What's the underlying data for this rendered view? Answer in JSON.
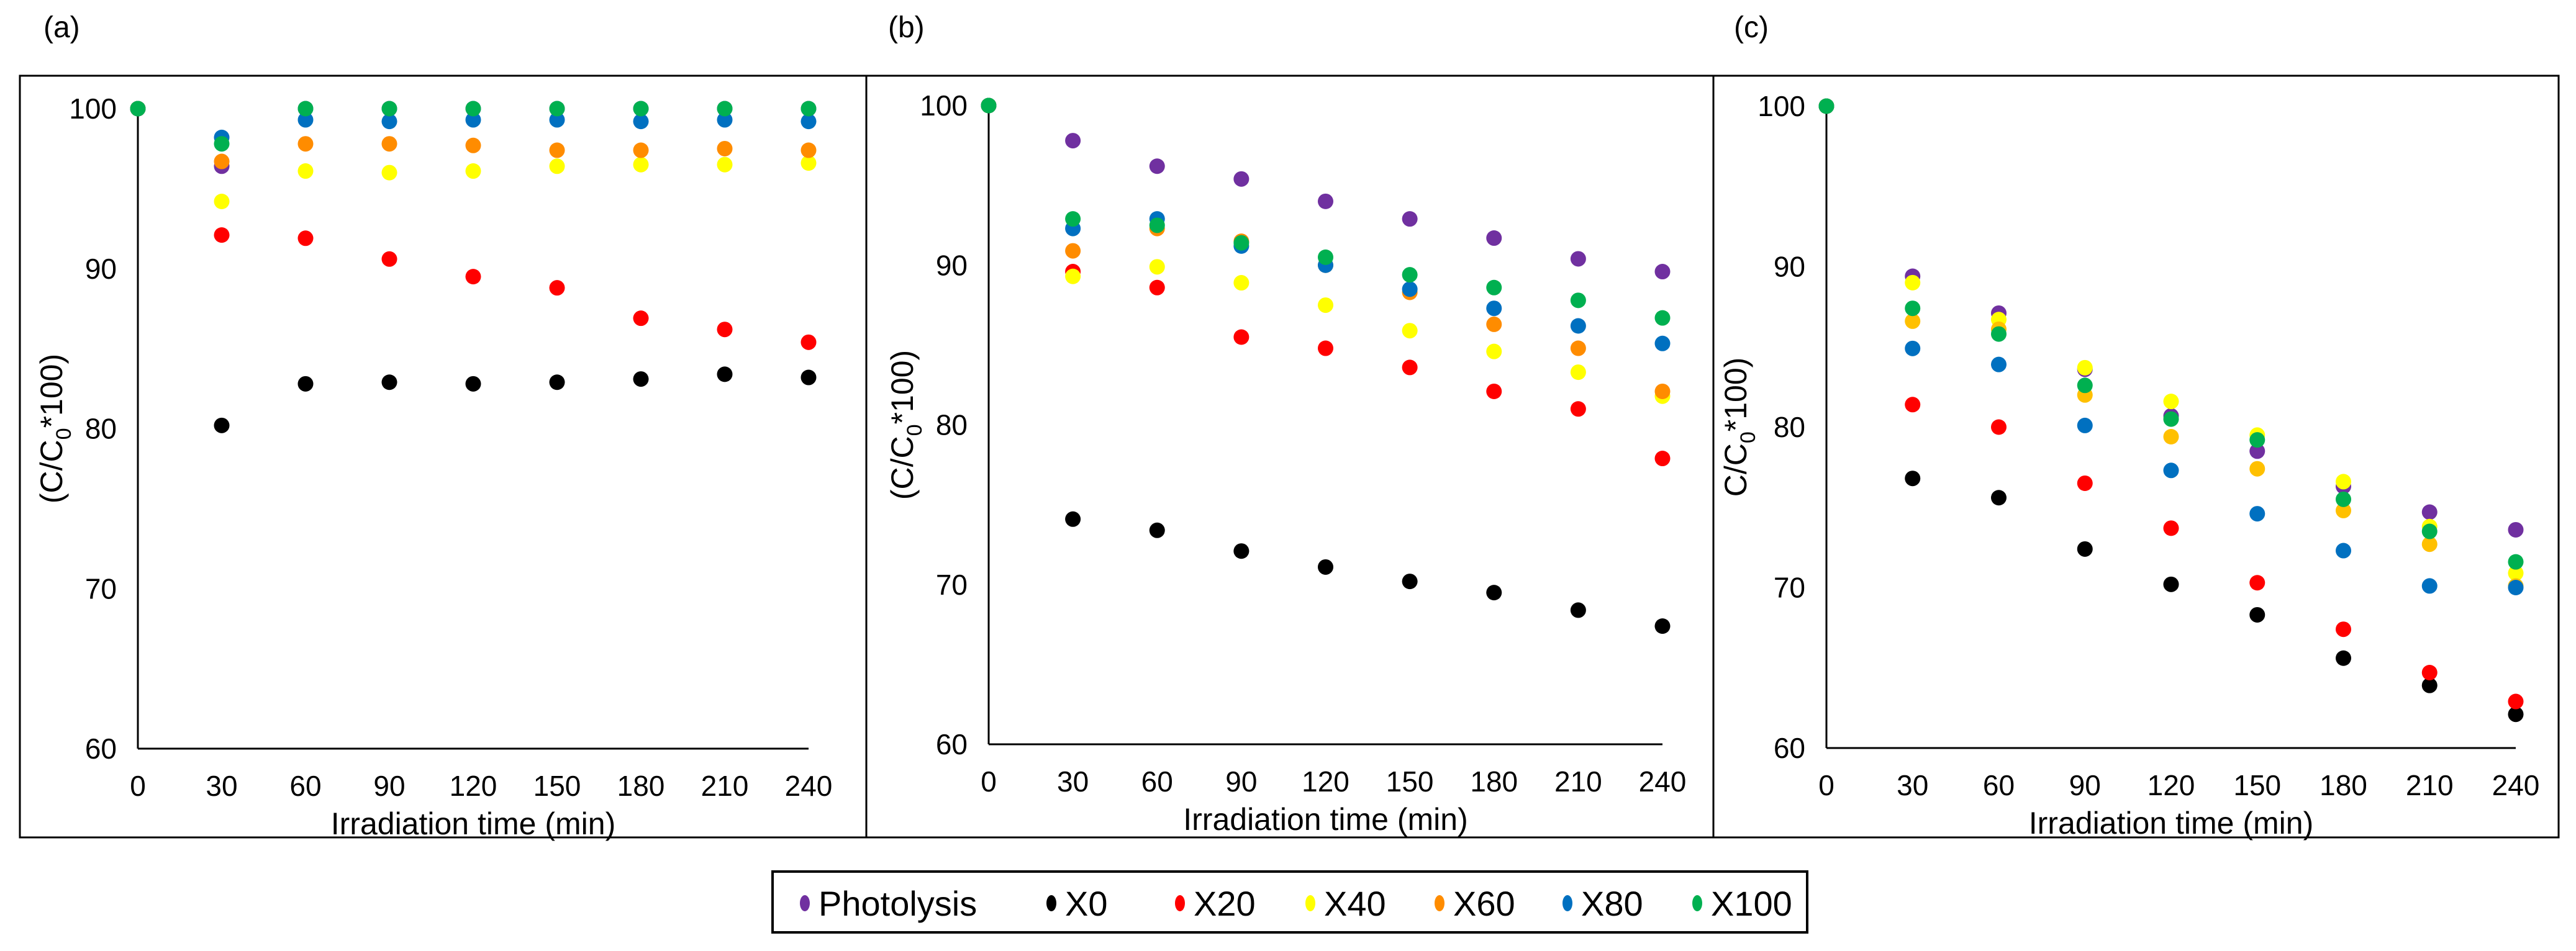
{
  "legend": {
    "items": [
      {
        "label": "Photolysis",
        "color": "#7030A0"
      },
      {
        "label": "X0",
        "color": "#000000"
      },
      {
        "label": "X20",
        "color": "#FF0000"
      },
      {
        "label": "X40",
        "color": "#FFFF00"
      },
      {
        "label": "X60",
        "color": "#FF8C00"
      },
      {
        "label": "X80",
        "color": "#0070C0"
      },
      {
        "label": "X100",
        "color": "#00B050"
      }
    ]
  },
  "chart_data": [
    {
      "type": "scatter",
      "panel_label": "(a)",
      "xlabel": "Irradiation time (min)",
      "ylabel": "(C/C0*100)",
      "ylabel_parts": [
        "(C/C",
        "0",
        "*100)"
      ],
      "xlim": [
        0,
        240
      ],
      "ylim": [
        60,
        100
      ],
      "xticks": [
        0,
        30,
        60,
        90,
        120,
        150,
        180,
        210,
        240
      ],
      "yticks": [
        60,
        70,
        80,
        90,
        100
      ],
      "grid": false,
      "x": [
        0,
        30,
        60,
        90,
        120,
        150,
        180,
        210,
        240
      ],
      "series": [
        {
          "name": "Photolysis",
          "color": "#7030A0",
          "values": [
            100,
            96.4,
            100,
            100,
            100,
            100,
            100,
            100,
            100
          ]
        },
        {
          "name": "X0",
          "color": "#000000",
          "values": [
            100,
            80.2,
            82.8,
            82.9,
            82.8,
            82.9,
            83.1,
            83.4,
            83.2
          ]
        },
        {
          "name": "X20",
          "color": "#FF0000",
          "values": [
            100,
            92.1,
            91.9,
            90.6,
            89.5,
            88.8,
            86.9,
            86.2,
            85.4
          ]
        },
        {
          "name": "X40",
          "color": "#FFFF00",
          "values": [
            100,
            94.2,
            96.1,
            96.0,
            96.1,
            96.4,
            96.5,
            96.5,
            96.6
          ]
        },
        {
          "name": "X60",
          "color": "#FF8C00",
          "values": [
            100,
            96.7,
            97.8,
            97.8,
            97.7,
            97.4,
            97.4,
            97.5,
            97.4
          ]
        },
        {
          "name": "X80",
          "color": "#0070C0",
          "values": [
            100,
            98.2,
            99.3,
            99.2,
            99.3,
            99.3,
            99.2,
            99.3,
            99.2
          ]
        },
        {
          "name": "X100",
          "color": "#00B050",
          "values": [
            100,
            97.8,
            100,
            100,
            100,
            100,
            100,
            100,
            100
          ]
        }
      ]
    },
    {
      "type": "scatter",
      "panel_label": "(b)",
      "xlabel": "Irradiation time (min)",
      "ylabel": "(C/C0*100)",
      "ylabel_parts": [
        "(C/C",
        "0",
        "*100)"
      ],
      "xlim": [
        0,
        240
      ],
      "ylim": [
        60,
        100
      ],
      "xticks": [
        0,
        30,
        60,
        90,
        120,
        150,
        180,
        210,
        240
      ],
      "yticks": [
        60,
        70,
        80,
        90,
        100
      ],
      "grid": false,
      "x": [
        0,
        30,
        60,
        90,
        120,
        150,
        180,
        210,
        240
      ],
      "series": [
        {
          "name": "Photolysis",
          "color": "#7030A0",
          "values": [
            100,
            97.8,
            96.2,
            95.4,
            94.0,
            92.9,
            91.7,
            90.4,
            89.6
          ]
        },
        {
          "name": "X0",
          "color": "#000000",
          "values": [
            100,
            74.1,
            73.4,
            72.1,
            71.1,
            70.2,
            69.5,
            68.4,
            67.4
          ]
        },
        {
          "name": "X20",
          "color": "#FF0000",
          "values": [
            100,
            89.6,
            88.6,
            85.5,
            84.8,
            83.6,
            82.1,
            81.0,
            77.9
          ]
        },
        {
          "name": "X40",
          "color": "#FFFF00",
          "values": [
            100,
            89.3,
            89.9,
            88.9,
            87.5,
            85.9,
            84.6,
            83.3,
            81.8
          ]
        },
        {
          "name": "X60",
          "color": "#FF8C00",
          "values": [
            100,
            90.9,
            92.3,
            91.5,
            90.0,
            88.3,
            86.3,
            84.8,
            82.1
          ]
        },
        {
          "name": "X80",
          "color": "#0070C0",
          "values": [
            100,
            92.3,
            92.9,
            91.2,
            90.0,
            88.5,
            87.3,
            86.2,
            85.1
          ]
        },
        {
          "name": "X100",
          "color": "#00B050",
          "values": [
            100,
            92.9,
            92.5,
            91.4,
            90.5,
            89.4,
            88.6,
            87.8,
            86.7
          ]
        }
      ]
    },
    {
      "type": "scatter",
      "panel_label": "(c)",
      "xlabel": "Irradiation time (min)",
      "ylabel": "C/C0*100)",
      "ylabel_parts": [
        "C/C",
        "0",
        "*100)"
      ],
      "xlim": [
        0,
        240
      ],
      "ylim": [
        60,
        100
      ],
      "xticks": [
        0,
        30,
        60,
        90,
        120,
        150,
        180,
        210,
        240
      ],
      "yticks": [
        60,
        70,
        80,
        90,
        100
      ],
      "grid": false,
      "x": [
        0,
        30,
        60,
        90,
        120,
        150,
        180,
        210,
        240
      ],
      "series": [
        {
          "name": "Photolysis",
          "color": "#7030A0",
          "values": [
            100,
            89.4,
            87.1,
            83.6,
            80.7,
            78.5,
            76.3,
            74.7,
            73.6
          ]
        },
        {
          "name": "X0",
          "color": "#000000",
          "values": [
            100,
            76.8,
            75.6,
            72.4,
            70.2,
            68.3,
            65.6,
            63.9,
            62.1
          ]
        },
        {
          "name": "X20",
          "color": "#FF0000",
          "values": [
            100,
            81.4,
            80.0,
            76.5,
            73.7,
            70.3,
            67.4,
            64.7,
            62.9
          ]
        },
        {
          "name": "X40",
          "color": "#FFFF00",
          "values": [
            100,
            89.0,
            86.7,
            83.7,
            81.6,
            79.5,
            76.6,
            73.8,
            70.9
          ]
        },
        {
          "name": "X60",
          "color": "#FFC000",
          "values": [
            100,
            86.6,
            86.1,
            82.0,
            79.4,
            77.4,
            74.8,
            72.7,
            70.1
          ]
        },
        {
          "name": "X80",
          "color": "#0070C0",
          "values": [
            100,
            84.9,
            83.9,
            80.1,
            77.3,
            74.6,
            72.3,
            70.1,
            70.0
          ]
        },
        {
          "name": "X100",
          "color": "#00B050",
          "values": [
            100,
            87.4,
            85.8,
            82.6,
            80.5,
            79.2,
            75.5,
            73.5,
            71.6
          ]
        }
      ]
    }
  ]
}
